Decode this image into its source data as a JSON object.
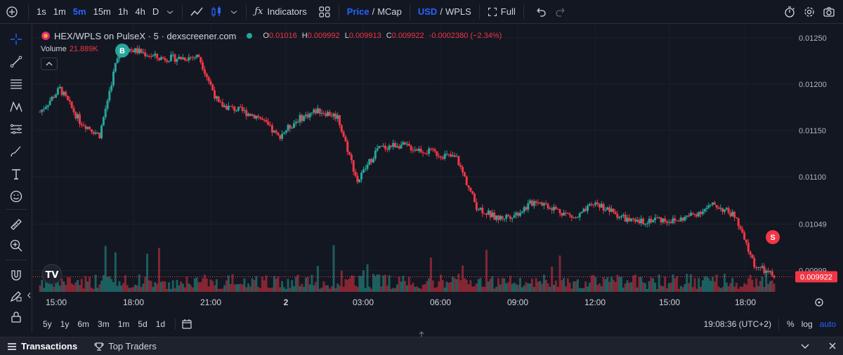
{
  "toolbar": {
    "intervals": [
      "1s",
      "1m",
      "5m",
      "15m",
      "1h",
      "4h",
      "D"
    ],
    "active_interval": "5m",
    "indicators_label": "Indicators",
    "price_label": "Price",
    "mcap_label": "MCap",
    "usd_label": "USD",
    "wpls_label": "WPLS",
    "full_label": "Full"
  },
  "legend": {
    "symbol": "HEX/WPLS on PulseX · 5 · dexscreener.com",
    "o_label": "O",
    "o_value": "0.01016",
    "h_label": "H",
    "h_value": "0.009992",
    "l_label": "L",
    "l_value": "0.009913",
    "c_label": "C",
    "c_value": "0.009922",
    "change": "-0.0002380 (−2.34%)",
    "volume_label": "Volume",
    "volume_value": "21.889K"
  },
  "markers": {
    "buy": "B",
    "sell": "S"
  },
  "price_axis": {
    "labels": [
      "0.01250",
      "0.01200",
      "0.01150",
      "0.01100",
      "0.01049",
      "0.00999"
    ],
    "current_price": "0.009922"
  },
  "time_axis": {
    "labels": [
      "15:00",
      "18:00",
      "21:00",
      "2",
      "03:00",
      "06:00",
      "09:00",
      "12:00",
      "15:00",
      "18:00"
    ]
  },
  "ranges": [
    "5y",
    "1y",
    "6m",
    "3m",
    "1m",
    "5d",
    "1d"
  ],
  "clock": "19:08:36 (UTC+2)",
  "scale_options": [
    "%",
    "log",
    "auto"
  ],
  "bottom_tabs": {
    "transactions": "Transactions",
    "top_traders": "Top Traders"
  },
  "colors": {
    "up": "#26a69a",
    "down": "#f23645",
    "bg": "#131722",
    "accent": "#2962ff"
  },
  "chart_data": {
    "type": "line",
    "series": [
      {
        "x": [
          0,
          60,
          120,
          180,
          240,
          300,
          360,
          420,
          480,
          540,
          600,
          660,
          720,
          780,
          840,
          900,
          960,
          1020,
          1080,
          1140,
          1200,
          1260,
          1320,
          1380,
          1440,
          1500,
          1560,
          1620,
          1680,
          1740,
          1800,
          1860,
          1920,
          1980,
          2040,
          2100,
          2160,
          2220
        ],
        "values": [
          0.0117,
          0.01195,
          0.0116,
          0.01145,
          0.0124,
          0.01235,
          0.01228,
          0.01228,
          0.0123,
          0.01178,
          0.01172,
          0.01165,
          0.01143,
          0.01162,
          0.01172,
          0.01165,
          0.01095,
          0.0113,
          0.01135,
          0.0113,
          0.01125,
          0.0112,
          0.01068,
          0.01055,
          0.0106,
          0.01075,
          0.01065,
          0.01055,
          0.01072,
          0.0106,
          0.0105,
          0.01055,
          0.01052,
          0.0106,
          0.0107,
          0.01058,
          0.01005,
          0.00992
        ]
      }
    ],
    "ylim": [
      0.00985,
      0.01265
    ],
    "xlabel": "",
    "ylabel": ""
  }
}
